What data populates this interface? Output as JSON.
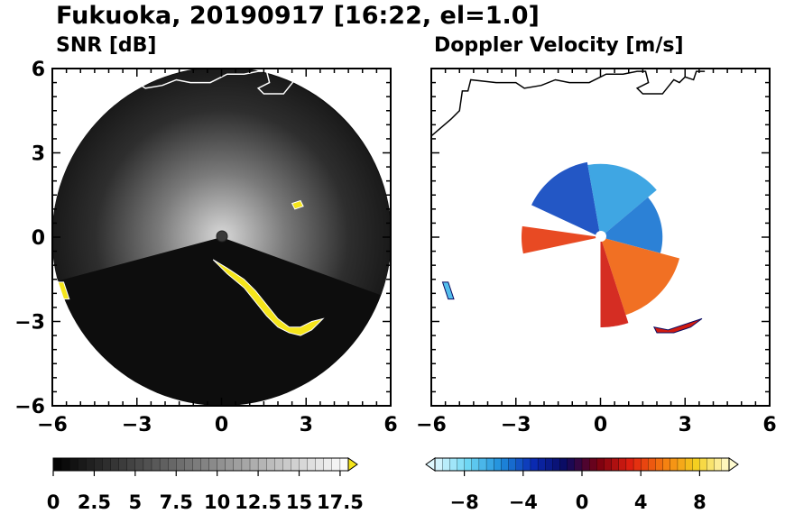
{
  "title": "Fukuoka, 20190917 [16:22, el=1.0]",
  "chart_data": [
    {
      "type": "heatmap",
      "panel": "left",
      "subtitle": "SNR [dB]",
      "xlim": [
        -6,
        6
      ],
      "ylim": [
        -6,
        6
      ],
      "x_ticks": [
        "−6",
        "−3",
        "0",
        "3",
        "6"
      ],
      "y_ticks": [
        "6",
        "3",
        "0",
        "−3",
        "−6"
      ],
      "grid": false,
      "background_color": "#0d0d0d",
      "echo_color": "#f5e51b",
      "echoes": [
        {
          "x": [
            2.5,
            2.8,
            2.9,
            2.6
          ],
          "y": [
            1.2,
            1.3,
            1.1,
            1.0
          ]
        },
        {
          "x": [
            -0.3,
            0.2,
            0.8,
            1.2,
            1.6,
            2.0,
            2.4,
            2.8,
            3.2,
            3.6,
            3.2,
            2.8,
            2.4,
            2.0,
            1.6,
            1.2,
            0.8,
            0.2
          ],
          "y": [
            -0.8,
            -1.1,
            -1.5,
            -1.9,
            -2.4,
            -2.9,
            -3.2,
            -3.2,
            -3.0,
            -2.9,
            -3.3,
            -3.5,
            -3.4,
            -3.2,
            -2.8,
            -2.3,
            -1.8,
            -1.3
          ]
        },
        {
          "x": [
            -5.8,
            -5.6,
            -5.4,
            -5.6
          ],
          "y": [
            -1.6,
            -1.6,
            -2.2,
            -2.2
          ]
        }
      ],
      "colorbar": {
        "ticks": [
          "0",
          "2.5",
          "5",
          "7.5",
          "10",
          "12.5",
          "15",
          "17.5"
        ],
        "range": [
          0,
          18
        ],
        "steps": 36,
        "extend": "max",
        "colors": [
          "#000000",
          "#ffffff"
        ],
        "extend_color": "#f5e51b"
      }
    },
    {
      "type": "heatmap",
      "panel": "right",
      "subtitle": "Doppler Velocity [m/s]",
      "xlim": [
        -6,
        6
      ],
      "ylim": [
        -6,
        6
      ],
      "x_ticks": [
        "−6",
        "−3",
        "0",
        "3",
        "6"
      ],
      "y_ticks": [],
      "grid": false,
      "sectors": [
        {
          "r": 2.7,
          "start_deg": 100,
          "end_deg": 155,
          "value": -4
        },
        {
          "r": 2.6,
          "start_deg": 40,
          "end_deg": 100,
          "value": -6
        },
        {
          "r": 2.2,
          "start_deg": -15,
          "end_deg": 40,
          "value": -5
        },
        {
          "r": 2.8,
          "start_deg": 172,
          "end_deg": 192,
          "value": 4
        },
        {
          "r": 2.9,
          "start_deg": -72,
          "end_deg": -15,
          "value": 5
        },
        {
          "r": 3.2,
          "start_deg": -90,
          "end_deg": -72,
          "value": 3
        }
      ],
      "echoes": [
        {
          "x": [
            1.9,
            2.4,
            3.0,
            3.6,
            3.2,
            2.6,
            2.0
          ],
          "y": [
            -3.2,
            -3.3,
            -3.1,
            -2.9,
            -3.2,
            -3.4,
            -3.4
          ],
          "value": 3
        },
        {
          "x": [
            -5.6,
            -5.4,
            -5.2,
            -5.4
          ],
          "y": [
            -1.6,
            -1.6,
            -2.2,
            -2.2
          ],
          "value": -7
        }
      ],
      "colorbar": {
        "ticks": [
          "−8",
          "−4",
          "0",
          "4",
          "8"
        ],
        "range": [
          -10,
          10
        ],
        "steps": 40,
        "extend": "both",
        "colors": [
          "#dff8ff",
          "#6fd8f4",
          "#1f8fdc",
          "#0a2bb4",
          "#0a0a60",
          "#7a0010",
          "#e02010",
          "#f57a10",
          "#f5d020",
          "#fffbd0"
        ]
      }
    }
  ],
  "coastline": {
    "x": [
      -6.0,
      -5.3,
      -5.0,
      -4.9,
      -4.7,
      -4.6,
      -3.7,
      -3.0,
      -2.7,
      -2.1,
      -1.6,
      -1.1,
      -0.4,
      0.2,
      0.8,
      1.3,
      1.6,
      1.7,
      1.3,
      1.5,
      2.2,
      2.6,
      2.8,
      3.0,
      3.3,
      3.4,
      3.7
    ],
    "y": [
      3.6,
      4.2,
      4.5,
      5.2,
      5.2,
      5.6,
      5.5,
      5.5,
      5.3,
      5.4,
      5.6,
      5.5,
      5.5,
      5.8,
      5.8,
      5.9,
      5.9,
      5.5,
      5.3,
      5.1,
      5.1,
      5.6,
      5.5,
      5.7,
      5.6,
      5.9,
      5.9
    ]
  }
}
